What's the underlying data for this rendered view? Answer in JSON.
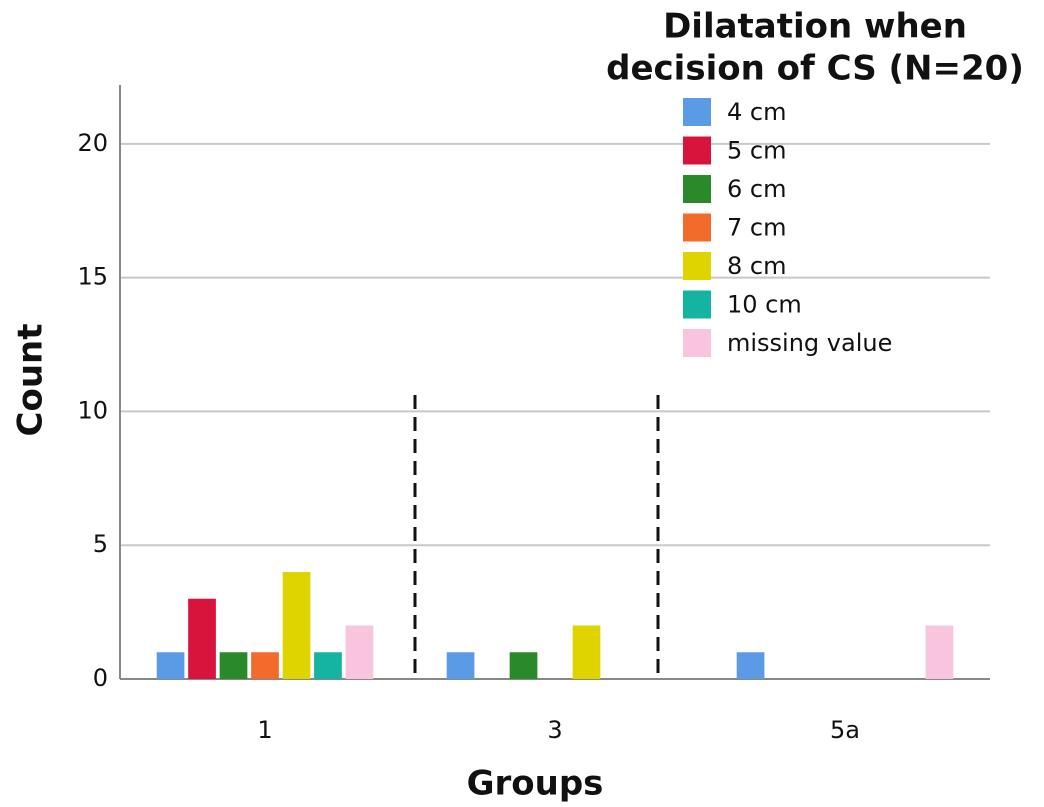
{
  "chart_data": {
    "type": "bar",
    "legend_title": [
      "Dilatation when",
      "decision of CS (N=20)"
    ],
    "xlabel": "Groups",
    "ylabel": "Count",
    "categories": [
      "1",
      "3",
      "5a"
    ],
    "series": [
      {
        "name": "4 cm",
        "color": "#5b9be6",
        "values": [
          1,
          1,
          1
        ]
      },
      {
        "name": "5 cm",
        "color": "#d8143c",
        "values": [
          3,
          0,
          0
        ]
      },
      {
        "name": "6 cm",
        "color": "#2a8a2a",
        "values": [
          1,
          1,
          0
        ]
      },
      {
        "name": "7 cm",
        "color": "#f26b2a",
        "values": [
          1,
          0,
          0
        ]
      },
      {
        "name": "8 cm",
        "color": "#e0d400",
        "values": [
          4,
          2,
          0
        ]
      },
      {
        "name": "10 cm",
        "color": "#14b4a0",
        "values": [
          1,
          0,
          0
        ]
      },
      {
        "name": "missing value",
        "color": "#f9c4de",
        "values": [
          2,
          0,
          2
        ]
      }
    ],
    "ylim": [
      0,
      22.2
    ],
    "yticks": [
      0,
      5,
      10,
      15,
      20
    ],
    "grid": true,
    "legend": "top-right"
  }
}
